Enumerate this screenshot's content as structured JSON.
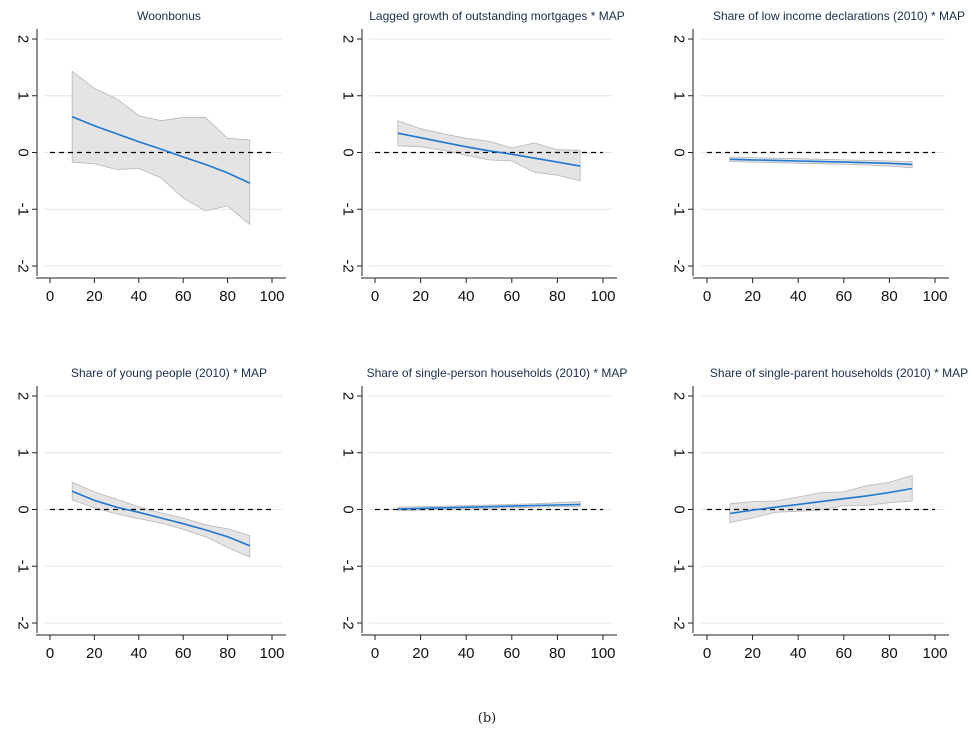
{
  "figure": {
    "caption": "(b)"
  },
  "style": {
    "line_color": "#1f78d1",
    "band_fill": "#e4e4e4",
    "band_stroke": "#b8b8b8",
    "grid_color": "#e6e6e6",
    "axis_color": "#222222",
    "reference_line_color": "#000000"
  },
  "chart_data": [
    {
      "type": "line",
      "title": "Woonbonus",
      "x": [
        10,
        20,
        30,
        40,
        50,
        60,
        70,
        80,
        90
      ],
      "series": [
        {
          "values": [
            0.63,
            0.47,
            0.33,
            0.19,
            0.06,
            -0.08,
            -0.21,
            -0.36,
            -0.54
          ]
        }
      ],
      "ci_upper": [
        1.43,
        1.13,
        0.95,
        0.65,
        0.56,
        0.62,
        0.62,
        0.25,
        0.22
      ],
      "ci_lower": [
        -0.17,
        -0.2,
        -0.3,
        -0.28,
        -0.45,
        -0.8,
        -1.03,
        -0.94,
        -1.27
      ],
      "reference_line": 0,
      "xlim": [
        0,
        100
      ],
      "ylim": [
        -2,
        2
      ],
      "x_ticks": [
        0,
        20,
        40,
        60,
        80,
        100
      ],
      "y_ticks": [
        -2,
        -1,
        0,
        1,
        2
      ],
      "grid": true
    },
    {
      "type": "line",
      "title": "Lagged growth of outstanding mortgages * MAP",
      "x": [
        10,
        20,
        30,
        40,
        50,
        60,
        70,
        80,
        90
      ],
      "series": [
        {
          "values": [
            0.34,
            0.26,
            0.18,
            0.1,
            0.03,
            -0.03,
            -0.1,
            -0.17,
            -0.24
          ]
        }
      ],
      "ci_upper": [
        0.56,
        0.42,
        0.33,
        0.25,
        0.2,
        0.08,
        0.17,
        0.05,
        0.04
      ],
      "ci_lower": [
        0.12,
        0.1,
        0.04,
        -0.05,
        -0.13,
        -0.15,
        -0.35,
        -0.4,
        -0.5
      ],
      "reference_line": 0,
      "xlim": [
        0,
        100
      ],
      "ylim": [
        -2,
        2
      ],
      "x_ticks": [
        0,
        20,
        40,
        60,
        80,
        100
      ],
      "y_ticks": [
        -2,
        -1,
        0,
        1,
        2
      ],
      "grid": true
    },
    {
      "type": "line",
      "title": "Share of low income declarations (2010) * MAP",
      "x": [
        10,
        20,
        30,
        40,
        50,
        60,
        70,
        80,
        90
      ],
      "series": [
        {
          "values": [
            -0.12,
            -0.13,
            -0.14,
            -0.15,
            -0.16,
            -0.17,
            -0.18,
            -0.19,
            -0.21
          ]
        }
      ],
      "ci_upper": [
        -0.08,
        -0.09,
        -0.1,
        -0.11,
        -0.12,
        -0.13,
        -0.14,
        -0.15,
        -0.16
      ],
      "ci_lower": [
        -0.16,
        -0.17,
        -0.18,
        -0.19,
        -0.2,
        -0.21,
        -0.22,
        -0.24,
        -0.27
      ],
      "reference_line": 0,
      "xlim": [
        0,
        100
      ],
      "ylim": [
        -2,
        2
      ],
      "x_ticks": [
        0,
        20,
        40,
        60,
        80,
        100
      ],
      "y_ticks": [
        -2,
        -1,
        0,
        1,
        2
      ],
      "grid": true
    },
    {
      "type": "line",
      "title": "Share of young people (2010) * MAP",
      "x": [
        10,
        20,
        30,
        40,
        50,
        60,
        70,
        80,
        90
      ],
      "series": [
        {
          "values": [
            0.32,
            0.16,
            0.04,
            -0.05,
            -0.15,
            -0.25,
            -0.36,
            -0.48,
            -0.64
          ]
        }
      ],
      "ci_upper": [
        0.48,
        0.31,
        0.18,
        0.05,
        -0.06,
        -0.15,
        -0.27,
        -0.34,
        -0.46
      ],
      "ci_lower": [
        0.17,
        0.03,
        -0.08,
        -0.16,
        -0.24,
        -0.35,
        -0.48,
        -0.67,
        -0.84
      ],
      "reference_line": 0,
      "xlim": [
        0,
        100
      ],
      "ylim": [
        -2,
        2
      ],
      "x_ticks": [
        0,
        20,
        40,
        60,
        80,
        100
      ],
      "y_ticks": [
        -2,
        -1,
        0,
        1,
        2
      ],
      "grid": true
    },
    {
      "type": "line",
      "title": "Share of single-person households (2010) * MAP",
      "x": [
        10,
        20,
        30,
        40,
        50,
        60,
        70,
        80,
        90
      ],
      "series": [
        {
          "values": [
            0.01,
            0.02,
            0.03,
            0.04,
            0.05,
            0.06,
            0.07,
            0.08,
            0.09
          ]
        }
      ],
      "ci_upper": [
        0.04,
        0.05,
        0.06,
        0.07,
        0.08,
        0.09,
        0.1,
        0.12,
        0.14
      ],
      "ci_lower": [
        -0.02,
        -0.01,
        0.0,
        0.01,
        0.02,
        0.03,
        0.04,
        0.05,
        0.05
      ],
      "reference_line": 0,
      "xlim": [
        0,
        100
      ],
      "ylim": [
        -2,
        2
      ],
      "x_ticks": [
        0,
        20,
        40,
        60,
        80,
        100
      ],
      "y_ticks": [
        -2,
        -1,
        0,
        1,
        2
      ],
      "grid": true
    },
    {
      "type": "line",
      "title": "Share of single-parent households (2010) * MAP",
      "x": [
        10,
        20,
        30,
        40,
        50,
        60,
        70,
        80,
        90
      ],
      "series": [
        {
          "values": [
            -0.07,
            -0.01,
            0.04,
            0.09,
            0.14,
            0.19,
            0.24,
            0.3,
            0.37
          ]
        }
      ],
      "ci_upper": [
        0.1,
        0.14,
        0.15,
        0.22,
        0.3,
        0.31,
        0.42,
        0.48,
        0.6
      ],
      "ci_lower": [
        -0.23,
        -0.15,
        -0.05,
        -0.03,
        -0.01,
        0.07,
        0.07,
        0.12,
        0.15
      ],
      "reference_line": 0,
      "xlim": [
        0,
        100
      ],
      "ylim": [
        -2,
        2
      ],
      "x_ticks": [
        0,
        20,
        40,
        60,
        80,
        100
      ],
      "y_ticks": [
        -2,
        -1,
        0,
        1,
        2
      ],
      "grid": true
    }
  ]
}
